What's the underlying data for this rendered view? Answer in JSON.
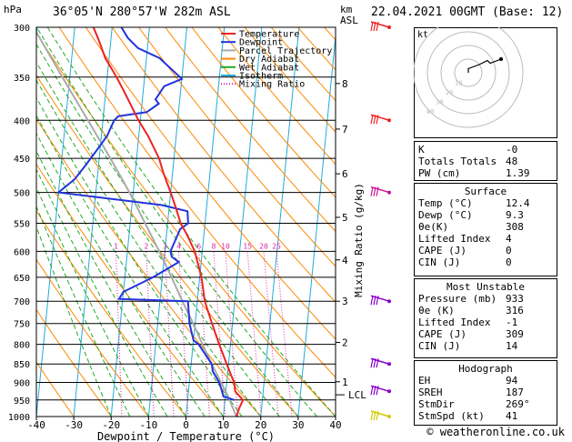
{
  "header": {
    "location": "36°05'N  280°57'W  282m  ASL",
    "datetime": "22.04.2021  00GMT  (Base: 12)",
    "hpa_unit": "hPa",
    "km_unit": "km",
    "asl_unit": "ASL"
  },
  "chart_data": {
    "type": "line",
    "title": "",
    "xlabel": "Dewpoint / Temperature (°C)",
    "ylabel": "Mixing Ratio (g/kg)",
    "xlim": [
      -40,
      40
    ],
    "ylim_hpa": [
      1000,
      300
    ],
    "y_scale": "log",
    "x_ticks": [
      -40,
      -30,
      -20,
      -10,
      0,
      10,
      20,
      30,
      40
    ],
    "pressure_ticks": [
      300,
      350,
      400,
      450,
      500,
      550,
      600,
      650,
      700,
      750,
      800,
      850,
      900,
      950,
      1000
    ],
    "km_ticks": [
      {
        "label": "8",
        "p": 357
      },
      {
        "label": "7",
        "p": 411
      },
      {
        "label": "6",
        "p": 472
      },
      {
        "label": "5",
        "p": 540
      },
      {
        "label": "4",
        "p": 616
      },
      {
        "label": "3",
        "p": 700
      },
      {
        "label": "2",
        "p": 795
      },
      {
        "label": "1",
        "p": 898
      }
    ],
    "lcl_label": "LCL",
    "lcl_p": 935,
    "mixing_ratio_labels": [
      "1",
      "2",
      "3",
      "4",
      "6",
      "8",
      "10",
      "15",
      "20",
      "25"
    ],
    "legend": [
      "Temperature",
      "Dewpoint",
      "Parcel Trajectory",
      "Dry Adiabat",
      "Wet Adiabat",
      "Isotherm",
      "Mixing Ratio"
    ],
    "legend_position": "top-right",
    "colors": {
      "temperature": "#ee2222",
      "dewpoint": "#2233dd",
      "parcel": "#aaaaaa",
      "dry_adiabat": "#ff8800",
      "wet_adiabat": "#22aa22",
      "isotherm": "#22aadd",
      "mixing_ratio": "#dd22aa"
    },
    "series": [
      {
        "name": "Temperature",
        "points": [
          [
            1000,
            13.5
          ],
          [
            975,
            14.0
          ],
          [
            950,
            14.8
          ],
          [
            925,
            12.5
          ],
          [
            900,
            12.0
          ],
          [
            880,
            11.0
          ],
          [
            850,
            9.5
          ],
          [
            800,
            7.0
          ],
          [
            750,
            4.5
          ],
          [
            700,
            2.0
          ],
          [
            650,
            0.5
          ],
          [
            620,
            -1.0
          ],
          [
            600,
            -2.0
          ],
          [
            570,
            -4.5
          ],
          [
            550,
            -6.5
          ],
          [
            520,
            -8.5
          ],
          [
            500,
            -10.0
          ],
          [
            470,
            -12.5
          ],
          [
            450,
            -14.0
          ],
          [
            420,
            -17.5
          ],
          [
            400,
            -20.5
          ],
          [
            370,
            -24.5
          ],
          [
            350,
            -27.5
          ],
          [
            330,
            -31.0
          ],
          [
            310,
            -33.5
          ],
          [
            300,
            -35.0
          ]
        ]
      },
      {
        "name": "Dewpoint",
        "points": [
          [
            950,
            12.5
          ],
          [
            940,
            9.5
          ],
          [
            920,
            8.8
          ],
          [
            900,
            8.0
          ],
          [
            870,
            6.0
          ],
          [
            850,
            5.5
          ],
          [
            800,
            1.5
          ],
          [
            790,
            0.0
          ],
          [
            750,
            -1.5
          ],
          [
            700,
            -2.5
          ],
          [
            695,
            -21.0
          ],
          [
            680,
            -20.0
          ],
          [
            650,
            -12.5
          ],
          [
            620,
            -6.0
          ],
          [
            610,
            -8.0
          ],
          [
            600,
            -8.5
          ],
          [
            580,
            -7.5
          ],
          [
            560,
            -6.5
          ],
          [
            550,
            -4.5
          ],
          [
            530,
            -5.0
          ],
          [
            520,
            -12.0
          ],
          [
            500,
            -40.0
          ],
          [
            480,
            -36.0
          ],
          [
            460,
            -33.5
          ],
          [
            440,
            -31.0
          ],
          [
            420,
            -28.5
          ],
          [
            400,
            -27.0
          ],
          [
            395,
            -26.0
          ],
          [
            390,
            -18.5
          ],
          [
            380,
            -15.5
          ],
          [
            375,
            -16.5
          ],
          [
            360,
            -14.5
          ],
          [
            352,
            -10.0
          ],
          [
            345,
            -12.0
          ],
          [
            330,
            -16.5
          ],
          [
            320,
            -22.5
          ],
          [
            310,
            -25.5
          ],
          [
            300,
            -27.5
          ]
        ]
      },
      {
        "name": "Parcel Trajectory",
        "points": [
          [
            1000,
            13.5
          ],
          [
            935,
            10.5
          ],
          [
            900,
            8.5
          ],
          [
            850,
            5.5
          ],
          [
            800,
            2.5
          ],
          [
            750,
            -0.5
          ],
          [
            700,
            -4.0
          ],
          [
            650,
            -7.5
          ],
          [
            600,
            -11.5
          ],
          [
            550,
            -16.0
          ],
          [
            500,
            -21.0
          ],
          [
            450,
            -27.0
          ],
          [
            400,
            -34.0
          ],
          [
            350,
            -42.0
          ],
          [
            300,
            -51.0
          ]
        ]
      }
    ],
    "wind_barbs": [
      {
        "p": 300,
        "color": "#ee2222"
      },
      {
        "p": 400,
        "color": "#ee2222"
      },
      {
        "p": 500,
        "color": "#cc1199"
      },
      {
        "p": 700,
        "color": "#8800cc"
      },
      {
        "p": 850,
        "color": "#8800cc"
      },
      {
        "p": 925,
        "color": "#8800cc"
      },
      {
        "p": 1000,
        "color": "#cccc00"
      }
    ],
    "hodograph": {
      "label": "kt",
      "ring_labels": [
        "10",
        "20",
        "30",
        "40"
      ],
      "trace_kt": [
        [
          0,
          0
        ],
        [
          0,
          3
        ],
        [
          8,
          6
        ],
        [
          14,
          9
        ],
        [
          16,
          7
        ],
        [
          24,
          10
        ]
      ]
    }
  },
  "indices": {
    "basic": [
      {
        "label": "K",
        "value": "-0"
      },
      {
        "label": "Totals Totals",
        "value": "48"
      },
      {
        "label": "PW (cm)",
        "value": "1.39"
      }
    ],
    "surface": {
      "title": "Surface",
      "rows": [
        {
          "label": "Temp (°C)",
          "value": "12.4"
        },
        {
          "label": "Dewp (°C)",
          "value": "9.3"
        },
        {
          "label": "θe(K)",
          "value": "308"
        },
        {
          "label": "Lifted Index",
          "value": "4"
        },
        {
          "label": "CAPE (J)",
          "value": "0"
        },
        {
          "label": "CIN (J)",
          "value": "0"
        }
      ]
    },
    "most_unstable": {
      "title": "Most Unstable",
      "rows": [
        {
          "label": "Pressure (mb)",
          "value": "933"
        },
        {
          "label": "θe (K)",
          "value": "316"
        },
        {
          "label": "Lifted Index",
          "value": "-1"
        },
        {
          "label": "CAPE (J)",
          "value": "309"
        },
        {
          "label": "CIN (J)",
          "value": "14"
        }
      ]
    },
    "hodograph": {
      "title": "Hodograph",
      "rows": [
        {
          "label": "EH",
          "value": "94"
        },
        {
          "label": "SREH",
          "value": "187"
        },
        {
          "label": "StmDir",
          "value": "269°"
        },
        {
          "label": "StmSpd (kt)",
          "value": "41"
        }
      ]
    }
  },
  "footer": "© weatheronline.co.uk"
}
